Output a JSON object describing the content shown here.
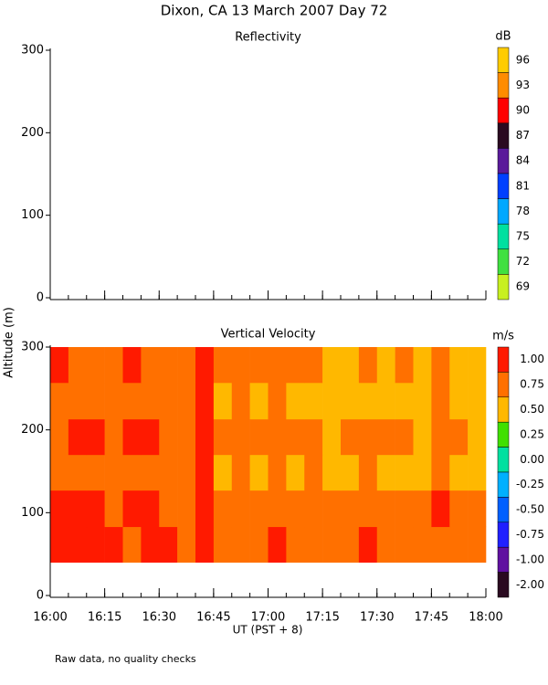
{
  "title": "Dixon, CA 13 March 2007  Day  72",
  "ylabel": "Altitude (m)",
  "xlabel": "UT  (PST + 8)",
  "footnote": "Raw data, no quality checks",
  "chart_data": [
    {
      "type": "empty",
      "title": "Reflectivity",
      "ylim": [
        0,
        300
      ],
      "yticks": [
        0,
        100,
        200,
        300
      ],
      "colorbar": {
        "unit": "dB",
        "ticks": [
          96,
          93,
          90,
          87,
          84,
          81,
          78,
          75,
          72,
          69
        ],
        "colors": [
          "#ffcc00",
          "#ff8c00",
          "#ff0000",
          "#2a0a20",
          "#5a1a9a",
          "#0040ff",
          "#00a8ff",
          "#00e0a0",
          "#40e040",
          "#c8f020"
        ]
      }
    },
    {
      "type": "heatmap",
      "title": "Vertical Velocity",
      "xlim": [
        "16:00",
        "18:00"
      ],
      "xticks": [
        "16:00",
        "16:15",
        "16:30",
        "16:45",
        "17:00",
        "17:15",
        "17:30",
        "17:45",
        "18:00"
      ],
      "ylim": [
        0,
        300
      ],
      "yticks": [
        0,
        100,
        200,
        300
      ],
      "x": [
        "16:00",
        "16:05",
        "16:10",
        "16:15",
        "16:20",
        "16:25",
        "16:30",
        "16:35",
        "16:40",
        "16:45",
        "16:50",
        "16:55",
        "17:00",
        "17:05",
        "17:10",
        "17:15",
        "17:20",
        "17:25",
        "17:30",
        "17:35",
        "17:40",
        "17:45",
        "17:50",
        "17:55"
      ],
      "y": [
        40,
        83,
        127,
        170,
        213,
        257
      ],
      "z": [
        [
          0.9,
          1.0,
          0.95,
          0.9,
          0.85,
          1.0,
          0.9,
          0.85,
          1.05,
          0.7,
          0.8,
          0.75,
          0.9,
          0.7,
          0.8,
          0.65,
          0.75,
          0.9,
          0.7,
          0.8,
          0.75,
          0.85,
          0.7,
          0.75
        ],
        [
          1.0,
          0.95,
          0.9,
          0.85,
          0.9,
          0.95,
          0.85,
          0.8,
          1.0,
          0.75,
          0.85,
          0.7,
          0.85,
          0.75,
          0.8,
          0.7,
          0.8,
          0.85,
          0.75,
          0.8,
          0.7,
          0.9,
          0.75,
          0.7
        ],
        [
          0.7,
          0.8,
          0.75,
          0.7,
          0.75,
          0.8,
          0.7,
          0.75,
          0.95,
          0.6,
          0.65,
          0.55,
          0.7,
          0.6,
          0.65,
          0.5,
          0.6,
          0.65,
          0.55,
          0.6,
          0.5,
          0.7,
          0.55,
          0.6
        ],
        [
          0.85,
          0.9,
          0.95,
          0.85,
          0.9,
          0.95,
          0.85,
          0.8,
          1.0,
          0.7,
          0.75,
          0.65,
          0.8,
          0.7,
          0.7,
          0.6,
          0.7,
          0.75,
          0.65,
          0.7,
          0.6,
          0.8,
          0.65,
          0.6
        ],
        [
          0.75,
          0.8,
          0.7,
          0.75,
          0.8,
          0.75,
          0.7,
          0.65,
          0.95,
          0.6,
          0.7,
          0.55,
          0.7,
          0.6,
          0.6,
          0.5,
          0.55,
          0.6,
          0.5,
          0.55,
          0.5,
          0.65,
          0.5,
          0.55
        ],
        [
          0.9,
          0.85,
          0.8,
          0.85,
          0.9,
          0.8,
          0.75,
          0.7,
          1.0,
          0.7,
          0.75,
          0.65,
          0.8,
          0.7,
          0.65,
          0.55,
          0.6,
          0.7,
          0.6,
          0.65,
          0.55,
          0.75,
          0.6,
          0.6
        ]
      ],
      "colorbar": {
        "unit": "m/s",
        "ticks": [
          {
            "value": 1,
            "label": "1.00"
          },
          {
            "value": 0.75,
            "label": "0.75"
          },
          {
            "value": 0.5,
            "label": "0.50"
          },
          {
            "value": 0.25,
            "label": "0.25"
          },
          {
            "value": 0,
            "label": "0.00"
          },
          {
            "value": -0.25,
            "label": "-0.25"
          },
          {
            "value": -0.5,
            "label": "-0.50"
          },
          {
            "value": -0.75,
            "label": "-0.75"
          },
          {
            "value": -1,
            "label": "-1.00"
          },
          {
            "value": -2,
            "label": "-2.00"
          }
        ],
        "colors": [
          "#ff1a00",
          "#ff7000",
          "#ffb800",
          "#40e000",
          "#00e0a0",
          "#00b0ff",
          "#0060ff",
          "#2020ff",
          "#6010a0",
          "#2a0a20"
        ]
      }
    }
  ]
}
